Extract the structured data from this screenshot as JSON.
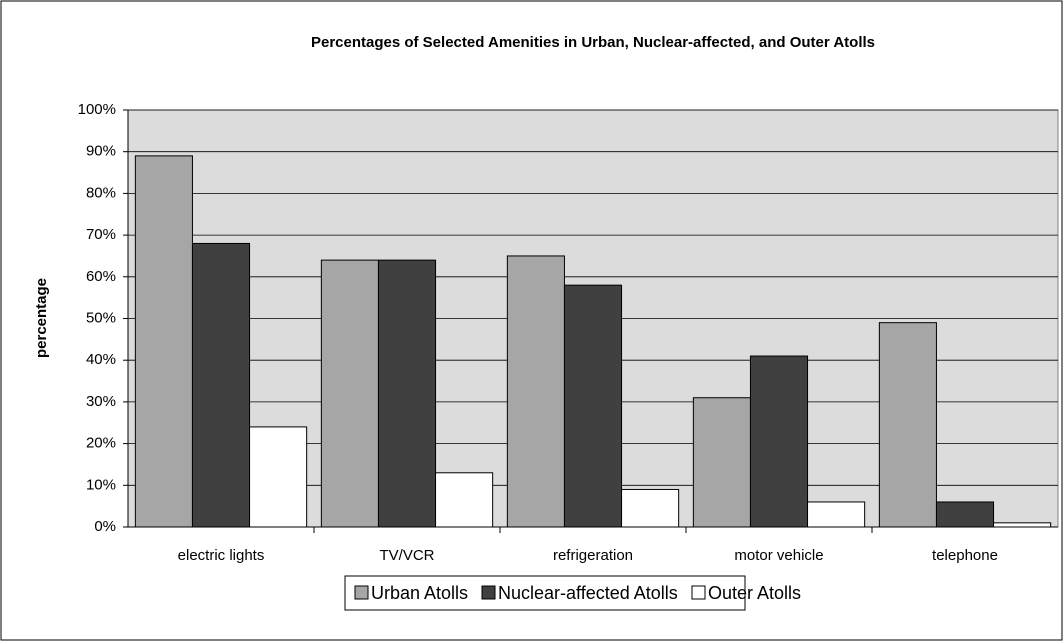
{
  "chart_data": {
    "type": "bar",
    "title": "Percentages of Selected Amenities in Urban, Nuclear-affected, and Outer Atolls",
    "y_label": "percentage",
    "categories": [
      "electric lights",
      "TV/VCR",
      "refrigeration",
      "motor vehicle",
      "telephone"
    ],
    "series": [
      {
        "name": "Urban Atolls",
        "color": "#a6a6a6",
        "values": [
          89,
          64,
          65,
          31,
          49
        ]
      },
      {
        "name": "Nuclear-affected Atolls",
        "color": "#404040",
        "values": [
          68,
          64,
          58,
          41,
          6
        ]
      },
      {
        "name": "Outer Atolls",
        "color": "#ffffff",
        "values": [
          24,
          13,
          9,
          6,
          1
        ]
      }
    ],
    "ylim": [
      0,
      100
    ],
    "yticks": [
      {
        "value": 0,
        "label": "0%"
      },
      {
        "value": 10,
        "label": "10%"
      },
      {
        "value": 20,
        "label": "20%"
      },
      {
        "value": 30,
        "label": "30%"
      },
      {
        "value": 40,
        "label": "40%"
      },
      {
        "value": 50,
        "label": "50%"
      },
      {
        "value": 60,
        "label": "60%"
      },
      {
        "value": 70,
        "label": "70%"
      },
      {
        "value": 80,
        "label": "80%"
      },
      {
        "value": 90,
        "label": "90%"
      },
      {
        "value": 100,
        "label": "100%"
      }
    ],
    "grid": true
  }
}
